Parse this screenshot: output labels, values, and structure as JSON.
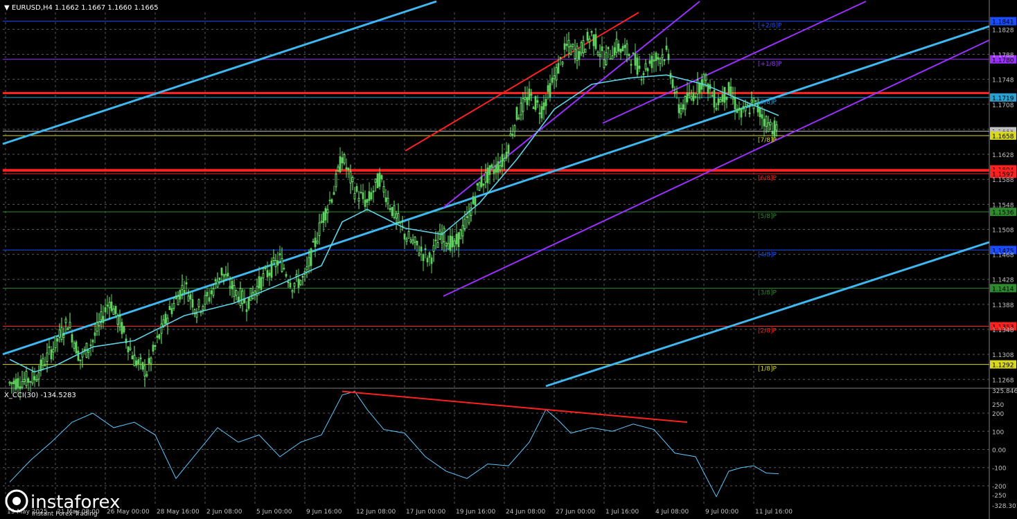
{
  "header": {
    "symbol_info": "▼ EURUSD,H4  1.1662 1.1667 1.1660 1.1665"
  },
  "indicator": {
    "label": "X_CCI(30) -134.5283"
  },
  "watermark": {
    "brand": "instaforex",
    "tagline": "Instant Forex Trading"
  },
  "colors": {
    "background": "#000000",
    "grid": "#5a5a5a",
    "axis": "#c0c0c0",
    "candle_up": "#7cff7c",
    "candle_down": "#5fd35f",
    "moving_average": "#5fd3e8",
    "regression_channel": "#3fb8f0",
    "pitchfork_channel": "#9b30ff",
    "resistance": "#ff2020",
    "cci_line": "#5fc8ff",
    "divergence_line": "#ff2020"
  },
  "chart_data": [
    {
      "type": "candlestick",
      "symbol": "EURUSD",
      "timeframe": "H4",
      "title": "EURUSD,H4",
      "ohlc_last": {
        "open": 1.1662,
        "high": 1.1667,
        "low": 1.166,
        "close": 1.1665
      },
      "ylim": [
        1.1255,
        1.1855
      ],
      "y_ticks": [
        "1.1828",
        "1.1788",
        "1.1748",
        "1.1708",
        "1.1668",
        "1.1628",
        "1.1588",
        "1.1548",
        "1.1508",
        "1.1468",
        "1.1428",
        "1.1388",
        "1.1348",
        "1.1308",
        "1.1268"
      ],
      "x_ticks": [
        "19 May 2025",
        "21 May 08:00",
        "26 May 00:00",
        "28 May 16:00",
        "2 Jun 08:00",
        "5 Jun 00:00",
        "9 Jun 16:00",
        "12 Jun 08:00",
        "17 Jun 00:00",
        "19 Jun 16:00",
        "24 Jun 08:00",
        "27 Jun 00:00",
        "1 Jul 16:00",
        "4 Jul 08:00",
        "9 Jul 00:00",
        "11 Jul 16:00"
      ],
      "price_path": [
        [
          0,
          1.1262
        ],
        [
          12,
          1.127
        ],
        [
          22,
          1.1325
        ],
        [
          28,
          1.136
        ],
        [
          34,
          1.13
        ],
        [
          40,
          1.133
        ],
        [
          48,
          1.1395
        ],
        [
          54,
          1.135
        ],
        [
          60,
          1.13
        ],
        [
          66,
          1.128
        ],
        [
          70,
          1.132
        ],
        [
          76,
          1.137
        ],
        [
          84,
          1.142
        ],
        [
          90,
          1.138
        ],
        [
          96,
          1.14
        ],
        [
          102,
          1.144
        ],
        [
          108,
          1.141
        ],
        [
          114,
          1.139
        ],
        [
          122,
          1.143
        ],
        [
          130,
          1.146
        ],
        [
          136,
          1.142
        ],
        [
          142,
          1.143
        ],
        [
          150,
          1.152
        ],
        [
          156,
          1.157
        ],
        [
          160,
          1.1625
        ],
        [
          166,
          1.157
        ],
        [
          172,
          1.155
        ],
        [
          178,
          1.159
        ],
        [
          184,
          1.154
        ],
        [
          190,
          1.15
        ],
        [
          196,
          1.148
        ],
        [
          202,
          1.146
        ],
        [
          208,
          1.15
        ],
        [
          214,
          1.148
        ],
        [
          220,
          1.152
        ],
        [
          226,
          1.158
        ],
        [
          232,
          1.16
        ],
        [
          238,
          1.162
        ],
        [
          244,
          1.169
        ],
        [
          250,
          1.172
        ],
        [
          256,
          1.17
        ],
        [
          262,
          1.175
        ],
        [
          268,
          1.18
        ],
        [
          274,
          1.179
        ],
        [
          280,
          1.182
        ],
        [
          286,
          1.178
        ],
        [
          292,
          1.18
        ],
        [
          298,
          1.179
        ],
        [
          304,
          1.176
        ],
        [
          310,
          1.178
        ],
        [
          316,
          1.179
        ],
        [
          322,
          1.17
        ],
        [
          328,
          1.172
        ],
        [
          334,
          1.175
        ],
        [
          340,
          1.171
        ],
        [
          346,
          1.173
        ],
        [
          352,
          1.169
        ],
        [
          358,
          1.171
        ],
        [
          364,
          1.168
        ],
        [
          370,
          1.1665
        ]
      ],
      "moving_average": [
        [
          0,
          1.13
        ],
        [
          12,
          1.128
        ],
        [
          22,
          1.129
        ],
        [
          40,
          1.132
        ],
        [
          60,
          1.133
        ],
        [
          84,
          1.137
        ],
        [
          108,
          1.139
        ],
        [
          130,
          1.142
        ],
        [
          150,
          1.145
        ],
        [
          160,
          1.152
        ],
        [
          172,
          1.154
        ],
        [
          190,
          1.151
        ],
        [
          208,
          1.15
        ],
        [
          226,
          1.155
        ],
        [
          244,
          1.162
        ],
        [
          262,
          1.17
        ],
        [
          280,
          1.174
        ],
        [
          298,
          1.175
        ],
        [
          316,
          1.1755
        ],
        [
          334,
          1.174
        ],
        [
          352,
          1.1715
        ],
        [
          370,
          1.169
        ]
      ],
      "levels": [
        {
          "label": "1.1841",
          "value": 1.1841,
          "color": "#1a4dff"
        },
        {
          "label": "1.1780",
          "value": 1.178,
          "color": "#9b30ff"
        },
        {
          "label": "1.1719",
          "value": 1.1719,
          "color": "#2aa0d0"
        },
        {
          "label": "1.1665",
          "value": 1.1665,
          "color": "#c0c0c0"
        },
        {
          "label": "1.1658",
          "value": 1.1658,
          "color": "#d8d820"
        },
        {
          "label": "1.1604",
          "value": 1.1604,
          "color": "#ff2020"
        },
        {
          "label": "1.1597",
          "value": 1.1597,
          "color": "#ff2020"
        },
        {
          "label": "1.1536",
          "value": 1.1536,
          "color": "#2e8b2e"
        },
        {
          "label": "1.1475",
          "value": 1.1475,
          "color": "#1a4dff"
        },
        {
          "label": "1.1414",
          "value": 1.1414,
          "color": "#2e8b2e"
        },
        {
          "label": "1.1353",
          "value": 1.1353,
          "color": "#ff2020"
        },
        {
          "label": "1.1292",
          "value": 1.1292,
          "color": "#d8d820"
        }
      ],
      "murrey_labels": [
        {
          "label": "[+2/8]P",
          "value": 1.1841,
          "color": "#1a4dff"
        },
        {
          "label": "[+1/8]P",
          "value": 1.178,
          "color": "#9b30ff"
        },
        {
          "label": "[8/8]P",
          "value": 1.1719,
          "color": "#2aa0d0"
        },
        {
          "label": "[7/8]P",
          "value": 1.1658,
          "color": "#d8d820"
        },
        {
          "label": "[6/8]P",
          "value": 1.1597,
          "color": "#ff2020"
        },
        {
          "label": "[5/8]P",
          "value": 1.1536,
          "color": "#2e8b2e"
        },
        {
          "label": "[4/8]P",
          "value": 1.1475,
          "color": "#1a4dff"
        },
        {
          "label": "[3/8]P",
          "value": 1.1414,
          "color": "#2e8b2e"
        },
        {
          "label": "[2/8]P",
          "value": 1.1353,
          "color": "#ff2020"
        },
        {
          "label": "[1/8]P",
          "value": 1.1292,
          "color": "#d8d820"
        }
      ],
      "resistance_lines": [
        1.1726,
        1.1602
      ]
    },
    {
      "type": "line",
      "title": "X_CCI(30)",
      "current": -134.5283,
      "ylim": [
        -307,
        326
      ],
      "y_ticks": [
        "325.846",
        "250",
        "200",
        "100",
        "0.00",
        "-100",
        "-200",
        "-250",
        "-328.307"
      ],
      "values": [
        [
          0,
          -180
        ],
        [
          10,
          -60
        ],
        [
          20,
          40
        ],
        [
          30,
          150
        ],
        [
          40,
          200
        ],
        [
          50,
          120
        ],
        [
          60,
          150
        ],
        [
          70,
          80
        ],
        [
          80,
          -160
        ],
        [
          90,
          -20
        ],
        [
          100,
          120
        ],
        [
          110,
          40
        ],
        [
          120,
          80
        ],
        [
          130,
          -40
        ],
        [
          140,
          40
        ],
        [
          150,
          80
        ],
        [
          160,
          300
        ],
        [
          166,
          320
        ],
        [
          172,
          220
        ],
        [
          180,
          110
        ],
        [
          190,
          90
        ],
        [
          200,
          -40
        ],
        [
          210,
          -120
        ],
        [
          220,
          -160
        ],
        [
          230,
          -80
        ],
        [
          240,
          -90
        ],
        [
          250,
          40
        ],
        [
          258,
          220
        ],
        [
          264,
          160
        ],
        [
          270,
          90
        ],
        [
          280,
          120
        ],
        [
          290,
          100
        ],
        [
          300,
          140
        ],
        [
          310,
          110
        ],
        [
          320,
          -20
        ],
        [
          330,
          -40
        ],
        [
          340,
          -260
        ],
        [
          346,
          -120
        ],
        [
          352,
          -100
        ],
        [
          358,
          -90
        ],
        [
          364,
          -130
        ],
        [
          370,
          -134
        ]
      ]
    }
  ]
}
